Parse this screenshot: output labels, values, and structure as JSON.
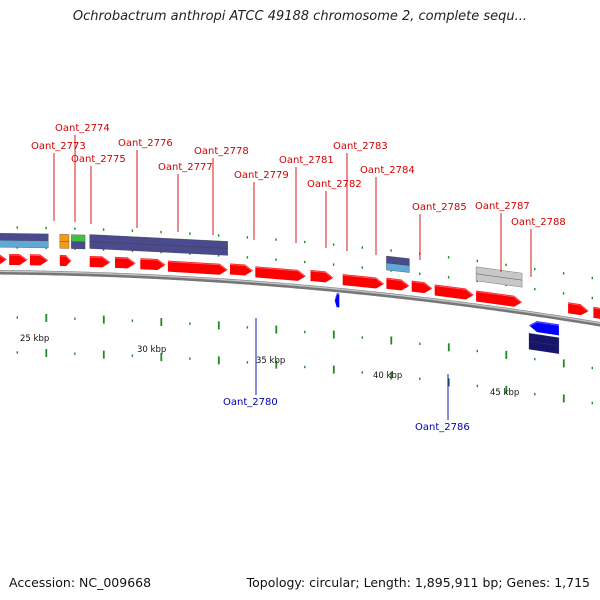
{
  "title": "Ochrobactrum anthropi ATCC 49188 chromosome 2, complete sequ...",
  "accession_text": "Accession: NC_009668",
  "topology_text": "Topology: circular; Length: 1,895,911 bp; Genes: 1,715",
  "colors": {
    "forward_gene": "#ff0000",
    "reverse_gene": "#0000ff",
    "forward_label": "#d40000",
    "reverse_label": "#0000b0",
    "tick": "#1f8a1f",
    "backbone": "#888888",
    "cog_purple": "#4b4a8c",
    "cog_light_blue": "#5fa8d8",
    "cog_orange": "#f39a1a",
    "cog_green": "#3cc23c",
    "cog_gray": "#c8c8c8",
    "cog_navy": "#15156e"
  },
  "kbp_labels": [
    {
      "kb": 25,
      "text": "25 kbp"
    },
    {
      "kb": 30,
      "text": "30 kbp"
    },
    {
      "kb": 35,
      "text": "35 kbp"
    },
    {
      "kb": 40,
      "text": "40 kbp"
    },
    {
      "kb": 45,
      "text": "45 kbp"
    }
  ],
  "genes": [
    {
      "name": "Oant_2773",
      "strand": "+",
      "start_kb": 24.4,
      "end_kb": 25.3,
      "labeled": true
    },
    {
      "name": "Oant_2774",
      "strand": "+",
      "start_kb": 25.5,
      "end_kb": 26.4,
      "labeled": true
    },
    {
      "name": "Oant_2775",
      "strand": "+",
      "start_kb": 26.6,
      "end_kb": 27.7,
      "labeled": true
    },
    {
      "name": "Oant_2776",
      "strand": "+",
      "start_kb": 27.8,
      "end_kb": 30.4,
      "labeled": true
    },
    {
      "name": "Oant_2777",
      "strand": "+",
      "start_kb": 30.5,
      "end_kb": 31.5,
      "labeled": true
    },
    {
      "name": "Oant_2778",
      "strand": "+",
      "start_kb": 31.6,
      "end_kb": 33.8,
      "labeled": true
    },
    {
      "name": "Oant_2779",
      "strand": "+",
      "start_kb": 34.0,
      "end_kb": 35.0,
      "labeled": true
    },
    {
      "name": "Oant_2780",
      "strand": "-",
      "start_kb": 35.05,
      "end_kb": 35.25,
      "labeled": true
    },
    {
      "name": "Oant_2781",
      "strand": "+",
      "start_kb": 35.4,
      "end_kb": 37.2,
      "labeled": true
    },
    {
      "name": "Oant_2782",
      "strand": "+",
      "start_kb": 37.3,
      "end_kb": 38.3,
      "labeled": true
    },
    {
      "name": "Oant_2783",
      "strand": "+",
      "start_kb": 38.4,
      "end_kb": 39.3,
      "labeled": true
    },
    {
      "name": "Oant_2784",
      "strand": "+",
      "start_kb": 39.4,
      "end_kb": 41.1,
      "labeled": true
    },
    {
      "name": "Oant_2785",
      "strand": "+",
      "start_kb": 41.2,
      "end_kb": 43.2,
      "labeled": true
    },
    {
      "name": "Oant_2786",
      "strand": "-",
      "start_kb": 43.5,
      "end_kb": 44.8,
      "labeled": true
    },
    {
      "name": "Oant_2787",
      "strand": "+",
      "start_kb": 45.2,
      "end_kb": 46.1,
      "labeled": true
    },
    {
      "name": "Oant_2788",
      "strand": "+",
      "start_kb": 46.3,
      "end_kb": 47.4,
      "labeled": true
    },
    {
      "name": "",
      "strand": "+",
      "start_kb": 47.6,
      "end_kb": 48.6,
      "labeled": false
    },
    {
      "name": "",
      "strand": "+",
      "start_kb": 48.7,
      "end_kb": 49.5,
      "labeled": false
    },
    {
      "name": "",
      "strand": "+",
      "start_kb": 49.6,
      "end_kb": 50.2,
      "labeled": false
    },
    {
      "name": "",
      "strand": "+",
      "start_kb": 19.9,
      "end_kb": 20.8,
      "labeled": false
    },
    {
      "name": "",
      "strand": "+",
      "start_kb": 20.9,
      "end_kb": 21.7,
      "labeled": false
    },
    {
      "name": "",
      "strand": "+",
      "start_kb": 21.8,
      "end_kb": 22.6,
      "labeled": false
    },
    {
      "name": "",
      "strand": "+",
      "start_kb": 23.1,
      "end_kb": 23.6,
      "labeled": false
    }
  ],
  "cog_blocks": [
    {
      "strand": "+",
      "start_kb": 19.9,
      "end_kb": 22.6,
      "colors": [
        "cog_purple",
        "cog_light_blue"
      ]
    },
    {
      "strand": "+",
      "start_kb": 23.1,
      "end_kb": 23.5,
      "colors": [
        "cog_orange",
        "cog_orange"
      ]
    },
    {
      "strand": "+",
      "start_kb": 23.6,
      "end_kb": 24.2,
      "colors": [
        "cog_green",
        "cog_purple"
      ]
    },
    {
      "strand": "+",
      "start_kb": 24.4,
      "end_kb": 30.4,
      "colors": [
        "cog_purple",
        "cog_purple"
      ]
    },
    {
      "strand": "+",
      "start_kb": 37.3,
      "end_kb": 38.3,
      "colors": [
        "cog_purple",
        "cog_light_blue"
      ]
    },
    {
      "strand": "+",
      "start_kb": 41.2,
      "end_kb": 43.2,
      "colors": [
        "cog_gray",
        "cog_gray"
      ]
    },
    {
      "strand": "-",
      "start_kb": 43.5,
      "end_kb": 44.8,
      "colors": [
        "cog_navy",
        "cog_navy"
      ]
    }
  ]
}
